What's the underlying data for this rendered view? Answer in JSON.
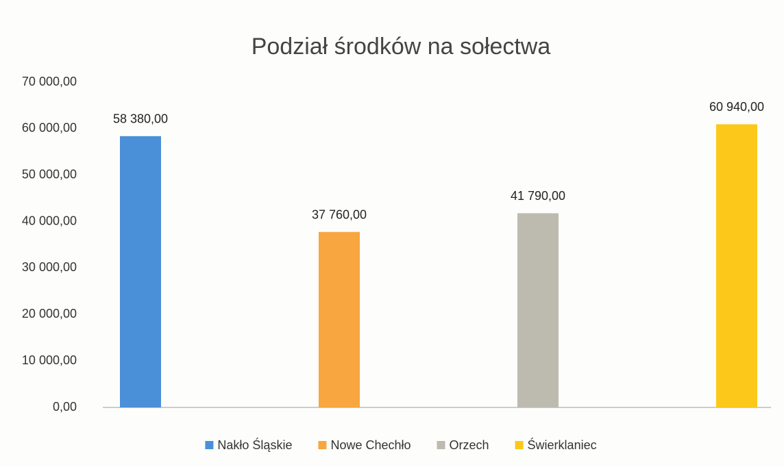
{
  "chart_data": {
    "type": "bar",
    "title": "Podział środków na sołectwa",
    "categories": [
      null,
      null,
      null,
      null
    ],
    "series": [
      {
        "name": "Nakło Śląskie",
        "color": "#4a90d9",
        "values": [
          58380,
          null,
          null,
          null
        ],
        "value_labels": [
          "58 380,00",
          null,
          null,
          null
        ]
      },
      {
        "name": "Nowe Chechło",
        "color": "#f7a640",
        "values": [
          null,
          37760,
          null,
          null
        ],
        "value_labels": [
          null,
          "37 760,00",
          null,
          null
        ]
      },
      {
        "name": "Orzech",
        "color": "#bdbab0",
        "values": [
          null,
          null,
          41790,
          null
        ],
        "value_labels": [
          null,
          null,
          "41 790,00",
          null
        ]
      },
      {
        "name": "Świerklaniec",
        "color": "#fcc81a",
        "values": [
          null,
          null,
          null,
          60940
        ],
        "value_labels": [
          null,
          null,
          null,
          "60 940,00"
        ]
      }
    ],
    "ylim": [
      0,
      70000
    ],
    "yticks": [
      {
        "value": 0,
        "label": "0,00"
      },
      {
        "value": 10000,
        "label": "10 000,00"
      },
      {
        "value": 20000,
        "label": "20 000,00"
      },
      {
        "value": 30000,
        "label": "30 000,00"
      },
      {
        "value": 40000,
        "label": "40 000,00"
      },
      {
        "value": 50000,
        "label": "50 000,00"
      },
      {
        "value": 60000,
        "label": "60 000,00"
      },
      {
        "value": 70000,
        "label": "70 000,00"
      }
    ],
    "grid": false,
    "legend": "bottom"
  }
}
